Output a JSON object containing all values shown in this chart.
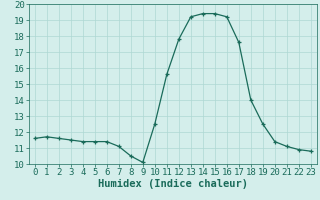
{
  "x": [
    0,
    1,
    2,
    3,
    4,
    5,
    6,
    7,
    8,
    9,
    10,
    11,
    12,
    13,
    14,
    15,
    16,
    17,
    18,
    19,
    20,
    21,
    22,
    23
  ],
  "y": [
    11.6,
    11.7,
    11.6,
    11.5,
    11.4,
    11.4,
    11.4,
    11.1,
    10.5,
    10.1,
    12.5,
    15.6,
    17.8,
    19.2,
    19.4,
    19.4,
    19.2,
    17.6,
    14.0,
    12.5,
    11.4,
    11.1,
    10.9,
    10.8
  ],
  "xlim": [
    -0.5,
    23.5
  ],
  "ylim": [
    10,
    20
  ],
  "xticks": [
    0,
    1,
    2,
    3,
    4,
    5,
    6,
    7,
    8,
    9,
    10,
    11,
    12,
    13,
    14,
    15,
    16,
    17,
    18,
    19,
    20,
    21,
    22,
    23
  ],
  "yticks": [
    10,
    11,
    12,
    13,
    14,
    15,
    16,
    17,
    18,
    19,
    20
  ],
  "xlabel": "Humidex (Indice chaleur)",
  "line_color": "#1a6b5a",
  "marker": "+",
  "bg_color": "#d4eeeb",
  "grid_color": "#aed8d4",
  "tick_color": "#1a6b5a",
  "tick_label_fontsize": 6.5,
  "xlabel_fontsize": 7.5
}
